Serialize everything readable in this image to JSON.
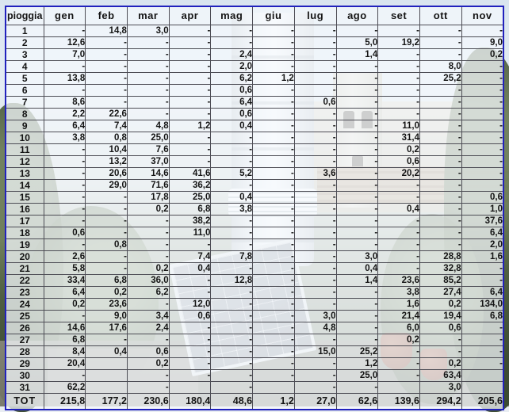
{
  "chart_data": {
    "type": "table",
    "corner_label": "pioggia",
    "columns": [
      "gen",
      "feb",
      "mar",
      "apr",
      "mag",
      "giu",
      "lug",
      "ago",
      "set",
      "ott",
      "nov"
    ],
    "rows": [
      {
        "day": "1",
        "values": [
          "-",
          "14,8",
          "3,0",
          "-",
          "-",
          "-",
          "-",
          "-",
          "-",
          "-",
          "-"
        ]
      },
      {
        "day": "2",
        "values": [
          "12,6",
          "-",
          "-",
          "-",
          "-",
          "-",
          "-",
          "5,0",
          "19,2",
          "-",
          "9,0"
        ]
      },
      {
        "day": "3",
        "values": [
          "7,0",
          "-",
          "-",
          "-",
          "2,4",
          "-",
          "-",
          "1,4",
          "-",
          "-",
          "0,2"
        ]
      },
      {
        "day": "4",
        "values": [
          "-",
          "-",
          "-",
          "-",
          "2,0",
          "-",
          "-",
          "-",
          "-",
          "8,0",
          "-"
        ]
      },
      {
        "day": "5",
        "values": [
          "13,8",
          "-",
          "-",
          "-",
          "6,2",
          "1,2",
          "-",
          "-",
          "-",
          "25,2",
          "-"
        ]
      },
      {
        "day": "6",
        "values": [
          "-",
          "-",
          "-",
          "-",
          "0,6",
          "-",
          "-",
          "-",
          "-",
          "-",
          "-"
        ]
      },
      {
        "day": "7",
        "values": [
          "8,6",
          "-",
          "-",
          "-",
          "6,4",
          "-",
          "0,6",
          "-",
          "-",
          "-",
          "-"
        ]
      },
      {
        "day": "8",
        "values": [
          "2,2",
          "22,6",
          "-",
          "-",
          "0,6",
          "-",
          "-",
          "-",
          "-",
          "-",
          "-"
        ]
      },
      {
        "day": "9",
        "values": [
          "6,4",
          "7,4",
          "4,8",
          "1,2",
          "0,4",
          "-",
          "-",
          "-",
          "11,0",
          "-",
          "-"
        ]
      },
      {
        "day": "10",
        "values": [
          "3,8",
          "0,8",
          "25,0",
          "-",
          "-",
          "-",
          "-",
          "-",
          "31,4",
          "-",
          "-"
        ]
      },
      {
        "day": "11",
        "values": [
          "-",
          "10,4",
          "7,6",
          "-",
          "-",
          "-",
          "-",
          "-",
          "0,2",
          "-",
          "-"
        ]
      },
      {
        "day": "12",
        "values": [
          "-",
          "13,2",
          "37,0",
          "-",
          "-",
          "-",
          "-",
          "-",
          "0,6",
          "-",
          "-"
        ]
      },
      {
        "day": "13",
        "values": [
          "-",
          "20,6",
          "14,6",
          "41,6",
          "5,2",
          "-",
          "3,6",
          "-",
          "20,2",
          "-",
          "-"
        ]
      },
      {
        "day": "14",
        "values": [
          "-",
          "29,0",
          "71,6",
          "36,2",
          "-",
          "-",
          "-",
          "-",
          "-",
          "-",
          "-"
        ]
      },
      {
        "day": "15",
        "values": [
          "-",
          "-",
          "17,8",
          "25,0",
          "0,4",
          "-",
          "-",
          "-",
          "-",
          "-",
          "0,6"
        ]
      },
      {
        "day": "16",
        "values": [
          "-",
          "-",
          "0,2",
          "6,8",
          "3,8",
          "-",
          "-",
          "-",
          "0,4",
          "-",
          "1,0"
        ]
      },
      {
        "day": "17",
        "values": [
          "-",
          "-",
          "-",
          "38,2",
          "-",
          "-",
          "-",
          "-",
          "-",
          "-",
          "37,6"
        ]
      },
      {
        "day": "18",
        "values": [
          "0,6",
          "-",
          "-",
          "11,0",
          "-",
          "-",
          "-",
          "-",
          "-",
          "-",
          "6,4"
        ]
      },
      {
        "day": "19",
        "values": [
          "-",
          "0,8",
          "-",
          "-",
          "-",
          "-",
          "-",
          "-",
          "-",
          "-",
          "2,0"
        ]
      },
      {
        "day": "20",
        "values": [
          "2,6",
          "-",
          "-",
          "7,4",
          "7,8",
          "-",
          "-",
          "3,0",
          "-",
          "28,8",
          "1,6"
        ]
      },
      {
        "day": "21",
        "values": [
          "5,8",
          "-",
          "0,2",
          "0,4",
          "-",
          "-",
          "-",
          "0,4",
          "-",
          "32,8",
          "-"
        ]
      },
      {
        "day": "22",
        "values": [
          "33,4",
          "6,8",
          "36,0",
          "-",
          "12,8",
          "-",
          "-",
          "1,4",
          "23,6",
          "85,2",
          "-"
        ]
      },
      {
        "day": "23",
        "values": [
          "6,4",
          "0,2",
          "6,2",
          "-",
          "-",
          "-",
          "-",
          "-",
          "3,8",
          "27,4",
          "6,4"
        ]
      },
      {
        "day": "24",
        "values": [
          "0,2",
          "23,6",
          "-",
          "12,0",
          "-",
          "-",
          "-",
          "-",
          "1,6",
          "0,2",
          "134,0"
        ]
      },
      {
        "day": "25",
        "values": [
          "-",
          "9,0",
          "3,4",
          "0,6",
          "-",
          "-",
          "3,0",
          "-",
          "21,4",
          "19,4",
          "6,8"
        ]
      },
      {
        "day": "26",
        "values": [
          "14,6",
          "17,6",
          "2,4",
          "-",
          "-",
          "-",
          "4,8",
          "-",
          "6,0",
          "0,6",
          "-"
        ]
      },
      {
        "day": "27",
        "values": [
          "6,8",
          "-",
          "-",
          "-",
          "-",
          "-",
          "-",
          "-",
          "0,2",
          "-",
          "-"
        ]
      },
      {
        "day": "28",
        "values": [
          "8,4",
          "0,4",
          "0,6",
          "-",
          "-",
          "-",
          "15,0",
          "25,2",
          "-",
          "-",
          "-"
        ]
      },
      {
        "day": "29",
        "values": [
          "20,4",
          "",
          "0,2",
          "-",
          "-",
          "-",
          "-",
          "1,2",
          "-",
          "0,2",
          "-"
        ]
      },
      {
        "day": "30",
        "values": [
          "-",
          "",
          "-",
          "-",
          "-",
          "-",
          "-",
          "25,0",
          "-",
          "63,4",
          ""
        ]
      },
      {
        "day": "31",
        "values": [
          "62,2",
          "",
          "-",
          "",
          "-",
          "",
          "-",
          "-",
          "",
          "3,0",
          ""
        ]
      }
    ],
    "total_label": "TOT",
    "totals": [
      "215,8",
      "177,2",
      "230,6",
      "180,4",
      "48,6",
      "1,2",
      "27,0",
      "62,6",
      "139,6",
      "294,2",
      "205,6"
    ],
    "highlight_cell": {
      "row_label": "24",
      "column": "nov",
      "value": "134,0"
    }
  },
  "colors": {
    "outer_border": "#2121bd",
    "grid_line": "#4d4d55",
    "header_text": "#0000d6",
    "cell_text": "#141414",
    "cell_bg": "rgba(244,248,252,0.75)",
    "highlight_bg": "#ffc000",
    "highlight_text": "#ff0000"
  }
}
